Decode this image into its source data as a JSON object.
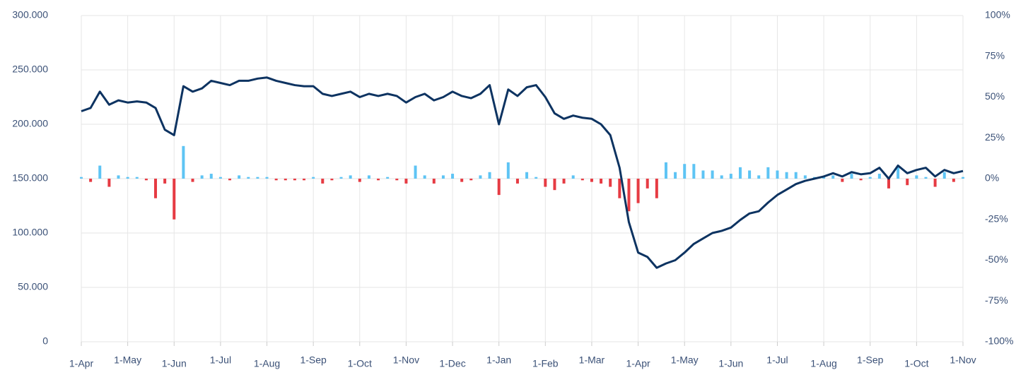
{
  "chart_data": {
    "type": "combo",
    "categories": [
      "1-Apr",
      null,
      null,
      null,
      null,
      "1-May",
      null,
      null,
      null,
      null,
      "1-Jun",
      null,
      null,
      null,
      null,
      "1-Jul",
      null,
      null,
      null,
      null,
      "1-Aug",
      null,
      null,
      null,
      null,
      "1-Sep",
      null,
      null,
      null,
      null,
      "1-Oct",
      null,
      null,
      null,
      null,
      "1-Nov",
      null,
      null,
      null,
      null,
      "1-Dec",
      null,
      null,
      null,
      null,
      "1-Jan",
      null,
      null,
      null,
      null,
      "1-Feb",
      null,
      null,
      null,
      null,
      "1-Mar",
      null,
      null,
      null,
      null,
      "1-Apr",
      null,
      null,
      null,
      null,
      "1-May",
      null,
      null,
      null,
      null,
      "1-Jun",
      null,
      null,
      null,
      null,
      "1-Jul",
      null,
      null,
      null,
      null,
      "1-Aug",
      null,
      null,
      null,
      null,
      "1-Sep",
      null,
      null,
      null,
      null,
      "1-Oct",
      null,
      null,
      null,
      null,
      "1-Nov"
    ],
    "series": [
      {
        "type": "bar",
        "axis": "y2",
        "color": "#5ec4f4",
        "negative_color": "#e63b43",
        "values": [
          1,
          -2,
          8,
          -5,
          2,
          1,
          1,
          -1,
          -12,
          -3,
          -25,
          20,
          -2,
          2,
          3,
          1,
          -1,
          2,
          1,
          1,
          1,
          -1,
          -1,
          -1,
          -1,
          1,
          -3,
          -1,
          1,
          2,
          -2,
          2,
          -1,
          1,
          -1,
          -3,
          8,
          2,
          -3,
          2,
          3,
          -2,
          -1,
          2,
          4,
          -10,
          10,
          -3,
          4,
          1,
          -5,
          -7,
          -3,
          2,
          -1,
          -2,
          -3,
          -5,
          -12,
          -20,
          -15,
          -6,
          -12,
          10,
          4,
          9,
          9,
          5,
          5,
          2,
          3,
          7,
          5,
          2,
          7,
          5,
          4,
          4,
          2,
          1,
          1,
          2,
          -2,
          3,
          -1,
          1,
          3,
          -6,
          8,
          -4,
          2,
          1,
          -5,
          4,
          -2,
          1
        ]
      },
      {
        "type": "line",
        "axis": "y",
        "color": "#0d3361",
        "values": [
          212000,
          215000,
          230000,
          218000,
          222000,
          220000,
          221000,
          220000,
          215000,
          195000,
          190000,
          235000,
          230000,
          233000,
          240000,
          238000,
          236000,
          240000,
          240000,
          242000,
          243000,
          240000,
          238000,
          236000,
          235000,
          235000,
          228000,
          226000,
          228000,
          230000,
          225000,
          228000,
          226000,
          228000,
          226000,
          220000,
          225000,
          228000,
          222000,
          225000,
          230000,
          226000,
          224000,
          228000,
          236000,
          200000,
          232000,
          226000,
          234000,
          236000,
          225000,
          210000,
          205000,
          208000,
          206000,
          205000,
          200000,
          190000,
          160000,
          110000,
          82000,
          78000,
          68000,
          72000,
          75000,
          82000,
          90000,
          95000,
          100000,
          102000,
          105000,
          112000,
          118000,
          120000,
          128000,
          135000,
          140000,
          145000,
          148000,
          150000,
          152000,
          155000,
          152000,
          156000,
          154000,
          155000,
          160000,
          150000,
          162000,
          155000,
          158000,
          160000,
          152000,
          158000,
          155000,
          157000
        ]
      }
    ],
    "ylim": [
      0,
      300000
    ],
    "yticks": [
      0,
      {
        "value": 50000,
        "label": "50.000"
      },
      {
        "value": 100000,
        "label": "100.000"
      },
      {
        "value": 150000,
        "label": "150.000"
      },
      {
        "value": 200000,
        "label": "200.000"
      },
      {
        "value": 250000,
        "label": "250.000"
      },
      {
        "value": 300000,
        "label": "300.000"
      }
    ],
    "y2lim": [
      -100,
      100
    ],
    "y2ticks": [
      {
        "value": -100,
        "label": "-100%"
      },
      {
        "value": -75,
        "label": "-75%"
      },
      {
        "value": -50,
        "label": "-50%"
      },
      {
        "value": -25,
        "label": "-25%"
      },
      {
        "value": 0,
        "label": "0%"
      },
      {
        "value": 25,
        "label": "25%"
      },
      {
        "value": 50,
        "label": "50%"
      },
      {
        "value": 75,
        "label": "75%"
      },
      {
        "value": 100,
        "label": "100%"
      }
    ],
    "grid": true
  }
}
